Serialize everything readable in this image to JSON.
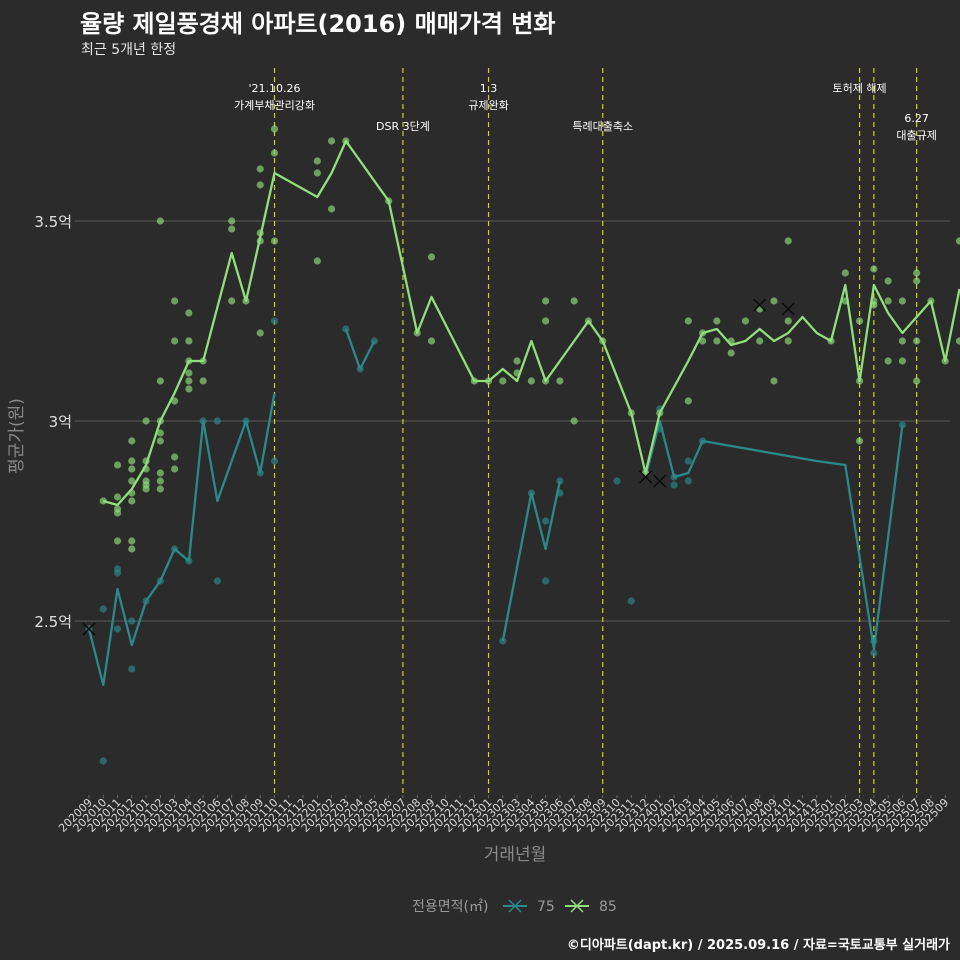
{
  "title": "율량 제일풍경채 아파트(2016) 매매가격 변화",
  "subtitle": "최근 5개년 한정",
  "caption": "©디아파트(dapt.kr) / 2025.09.16 / 자료=국토교통부 실거래가",
  "colors": {
    "background": "#2b2b2b",
    "series_75": "#2a8a8a",
    "series_85": "#8fe07a",
    "event_line": "#cfcf1f",
    "grid": "#5a5a5a"
  },
  "chart_data": {
    "type": "line",
    "xlabel": "거래년월",
    "ylabel": "평균가(원)",
    "ylim": [
      2.0,
      3.9
    ],
    "y_ticks": [
      {
        "value": 2.5,
        "label": "2.5억"
      },
      {
        "value": 3.0,
        "label": "3억"
      },
      {
        "value": 3.5,
        "label": "3.5억"
      }
    ],
    "x_tick_labels": [
      "202009",
      "202010",
      "202011",
      "202012",
      "202101",
      "202102",
      "202103",
      "202104",
      "202105",
      "202106",
      "202107",
      "202108",
      "202109",
      "202110",
      "202111",
      "202112",
      "202201",
      "202202",
      "202203",
      "202204",
      "202205",
      "202206",
      "202207",
      "202208",
      "202209",
      "202210",
      "202211",
      "202212",
      "202301",
      "202302",
      "202303",
      "202304",
      "202305",
      "202306",
      "202307",
      "202308",
      "202309",
      "202310",
      "202311",
      "202312",
      "202401",
      "202402",
      "202403",
      "202404",
      "202405",
      "202406",
      "202407",
      "202408",
      "202409",
      "202410",
      "202411",
      "202412",
      "202501",
      "202502",
      "202503",
      "202504",
      "202505",
      "202506",
      "202507",
      "202508",
      "202509"
    ],
    "grid": true,
    "legend": {
      "position": "bottom",
      "title": "전용면적(㎡)",
      "items": [
        "75",
        "85"
      ]
    },
    "events": [
      {
        "x": 13,
        "label": "'21.10.26\n가계부채관리강화",
        "row": 0
      },
      {
        "x": 22,
        "label": "DSR 3단계",
        "row": 1
      },
      {
        "x": 28,
        "label": "1.3\n규제완화",
        "row": 0
      },
      {
        "x": 36,
        "label": "특례대출축소",
        "row": 1
      },
      {
        "x": 54,
        "label": "토허제 해제",
        "row": 0
      },
      {
        "x": 55,
        "label": "",
        "row": 0
      },
      {
        "x": 58,
        "label": "6.27\n대출규제",
        "row": 2
      }
    ],
    "series": [
      {
        "name": "75",
        "color": "#2a8a8a",
        "line": [
          [
            0,
            2.48
          ],
          [
            1,
            2.34
          ],
          [
            2,
            2.58
          ],
          [
            3,
            2.44
          ],
          [
            4,
            2.55
          ],
          [
            5,
            2.6
          ],
          [
            6,
            2.68
          ],
          [
            7,
            2.65
          ],
          [
            8,
            3.0
          ],
          [
            9,
            2.8
          ],
          [
            11,
            3.0
          ],
          [
            12,
            2.87
          ],
          [
            13,
            3.07
          ],
          null,
          [
            18,
            3.23
          ],
          [
            19,
            3.13
          ],
          [
            20,
            3.2
          ],
          null,
          [
            29,
            2.45
          ],
          [
            31,
            2.82
          ],
          [
            32,
            2.68
          ],
          [
            33,
            2.85
          ],
          null,
          [
            39,
            2.86
          ],
          [
            40,
            3.0
          ],
          [
            41,
            2.86
          ],
          [
            42,
            2.87
          ],
          [
            43,
            2.95
          ],
          [
            51,
            2.9
          ],
          [
            53,
            2.89
          ],
          [
            55,
            2.43
          ],
          [
            57,
            2.99
          ]
        ],
        "points": [
          [
            0,
            2.48
          ],
          [
            1,
            2.53
          ],
          [
            1,
            2.15
          ],
          [
            2,
            2.62
          ],
          [
            2,
            2.63
          ],
          [
            2,
            2.48
          ],
          [
            3,
            2.38
          ],
          [
            3,
            2.5
          ],
          [
            4,
            2.55
          ],
          [
            5,
            2.6
          ],
          [
            6,
            2.68
          ],
          [
            7,
            2.65
          ],
          [
            8,
            3.0
          ],
          [
            9,
            2.6
          ],
          [
            9,
            3.0
          ],
          [
            11,
            3.0
          ],
          [
            12,
            2.87
          ],
          [
            13,
            3.25
          ],
          [
            13,
            2.9
          ],
          [
            18,
            3.23
          ],
          [
            19,
            3.13
          ],
          [
            20,
            3.2
          ],
          [
            29,
            2.45
          ],
          [
            31,
            2.82
          ],
          [
            32,
            2.75
          ],
          [
            32,
            2.6
          ],
          [
            33,
            2.82
          ],
          [
            33,
            2.85
          ],
          [
            37,
            2.85
          ],
          [
            38,
            2.55
          ],
          [
            40,
            2.98
          ],
          [
            40,
            3.03
          ],
          [
            41,
            2.86
          ],
          [
            41,
            2.84
          ],
          [
            42,
            2.85
          ],
          [
            42,
            2.9
          ],
          [
            43,
            2.95
          ],
          [
            55,
            2.45
          ],
          [
            55,
            2.42
          ],
          [
            57,
            2.99
          ]
        ],
        "x_markers": [
          [
            0,
            2.48
          ],
          [
            40,
            2.85
          ]
        ]
      },
      {
        "name": "85",
        "color": "#8fe07a",
        "line": [
          [
            1,
            2.8
          ],
          [
            2,
            2.79
          ],
          [
            3,
            2.83
          ],
          [
            4,
            2.89
          ],
          [
            5,
            3.0
          ],
          [
            6,
            3.07
          ],
          [
            7,
            3.15
          ],
          [
            8,
            3.15
          ],
          [
            10,
            3.42
          ],
          [
            11,
            3.3
          ],
          [
            13,
            3.62
          ],
          [
            16,
            3.56
          ],
          [
            17,
            3.62
          ],
          [
            18,
            3.7
          ],
          [
            21,
            3.55
          ],
          [
            23,
            3.22
          ],
          [
            24,
            3.31
          ],
          [
            27,
            3.1
          ],
          [
            28,
            3.1
          ],
          [
            29,
            3.13
          ],
          [
            30,
            3.1
          ],
          [
            31,
            3.2
          ],
          [
            32,
            3.1
          ],
          [
            35,
            3.25
          ],
          [
            36,
            3.2
          ],
          [
            38,
            3.02
          ],
          [
            39,
            2.87
          ],
          [
            40,
            3.02
          ],
          [
            42,
            3.15
          ],
          [
            43,
            3.22
          ],
          [
            44,
            3.23
          ],
          [
            45,
            3.19
          ],
          [
            46,
            3.2
          ],
          [
            47,
            3.23
          ],
          [
            48,
            3.2
          ],
          [
            49,
            3.22
          ],
          [
            50,
            3.26
          ],
          [
            51,
            3.22
          ],
          [
            52,
            3.2
          ],
          [
            53,
            3.34
          ],
          [
            54,
            3.1
          ],
          [
            55,
            3.34
          ],
          [
            56,
            3.27
          ],
          [
            57,
            3.22
          ],
          [
            59,
            3.3
          ],
          [
            60,
            3.15
          ],
          [
            61,
            3.33
          ]
        ],
        "points": [
          [
            1,
            2.8
          ],
          [
            2,
            2.81
          ],
          [
            2,
            2.78
          ],
          [
            2,
            2.77
          ],
          [
            2,
            2.89
          ],
          [
            2,
            2.7
          ],
          [
            3,
            2.8
          ],
          [
            3,
            2.82
          ],
          [
            3,
            2.85
          ],
          [
            3,
            2.88
          ],
          [
            3,
            2.9
          ],
          [
            3,
            2.95
          ],
          [
            3,
            2.7
          ],
          [
            3,
            2.68
          ],
          [
            4,
            2.85
          ],
          [
            4,
            2.84
          ],
          [
            4,
            2.83
          ],
          [
            4,
            2.88
          ],
          [
            4,
            2.9
          ],
          [
            4,
            3.0
          ],
          [
            5,
            2.83
          ],
          [
            5,
            2.85
          ],
          [
            5,
            2.87
          ],
          [
            5,
            2.95
          ],
          [
            5,
            2.97
          ],
          [
            5,
            3.0
          ],
          [
            5,
            3.1
          ],
          [
            5,
            3.5
          ],
          [
            6,
            2.88
          ],
          [
            6,
            2.91
          ],
          [
            6,
            3.05
          ],
          [
            6,
            3.2
          ],
          [
            6,
            3.3
          ],
          [
            7,
            3.08
          ],
          [
            7,
            3.1
          ],
          [
            7,
            3.12
          ],
          [
            7,
            3.15
          ],
          [
            7,
            3.27
          ],
          [
            7,
            3.2
          ],
          [
            8,
            3.1
          ],
          [
            8,
            3.15
          ],
          [
            10,
            3.3
          ],
          [
            10,
            3.48
          ],
          [
            10,
            3.5
          ],
          [
            11,
            3.3
          ],
          [
            12,
            3.22
          ],
          [
            12,
            3.45
          ],
          [
            12,
            3.47
          ],
          [
            12,
            3.59
          ],
          [
            12,
            3.63
          ],
          [
            13,
            3.45
          ],
          [
            13,
            3.67
          ],
          [
            13,
            3.73
          ],
          [
            16,
            3.4
          ],
          [
            16,
            3.62
          ],
          [
            16,
            3.65
          ],
          [
            17,
            3.53
          ],
          [
            17,
            3.7
          ],
          [
            18,
            3.7
          ],
          [
            21,
            3.55
          ],
          [
            23,
            3.22
          ],
          [
            24,
            3.2
          ],
          [
            24,
            3.41
          ],
          [
            27,
            3.1
          ],
          [
            28,
            3.1
          ],
          [
            29,
            3.1
          ],
          [
            30,
            3.15
          ],
          [
            30,
            3.12
          ],
          [
            31,
            3.1
          ],
          [
            32,
            3.3
          ],
          [
            32,
            3.25
          ],
          [
            32,
            3.1
          ],
          [
            33,
            3.1
          ],
          [
            34,
            3.3
          ],
          [
            34,
            3.0
          ],
          [
            35,
            3.25
          ],
          [
            36,
            3.2
          ],
          [
            38,
            3.02
          ],
          [
            39,
            2.87
          ],
          [
            40,
            3.02
          ],
          [
            42,
            3.25
          ],
          [
            42,
            3.05
          ],
          [
            43,
            3.2
          ],
          [
            43,
            3.22
          ],
          [
            44,
            3.2
          ],
          [
            44,
            3.25
          ],
          [
            45,
            3.17
          ],
          [
            45,
            3.2
          ],
          [
            46,
            3.25
          ],
          [
            47,
            3.2
          ],
          [
            47,
            3.28
          ],
          [
            48,
            3.3
          ],
          [
            48,
            3.1
          ],
          [
            49,
            3.2
          ],
          [
            49,
            3.25
          ],
          [
            49,
            3.45
          ],
          [
            52,
            3.2
          ],
          [
            53,
            3.3
          ],
          [
            53,
            3.37
          ],
          [
            54,
            3.25
          ],
          [
            54,
            3.1
          ],
          [
            54,
            2.95
          ],
          [
            55,
            3.29
          ],
          [
            55,
            3.3
          ],
          [
            55,
            3.38
          ],
          [
            56,
            3.15
          ],
          [
            56,
            3.35
          ],
          [
            56,
            3.3
          ],
          [
            57,
            3.15
          ],
          [
            57,
            3.2
          ],
          [
            57,
            3.3
          ],
          [
            58,
            3.37
          ],
          [
            58,
            3.35
          ],
          [
            58,
            3.2
          ],
          [
            58,
            3.1
          ],
          [
            59,
            3.3
          ],
          [
            60,
            3.15
          ],
          [
            61,
            3.45
          ],
          [
            61,
            3.2
          ]
        ],
        "x_markers": [
          [
            39,
            2.86
          ],
          [
            47,
            3.29
          ],
          [
            49,
            3.28
          ]
        ]
      }
    ]
  }
}
